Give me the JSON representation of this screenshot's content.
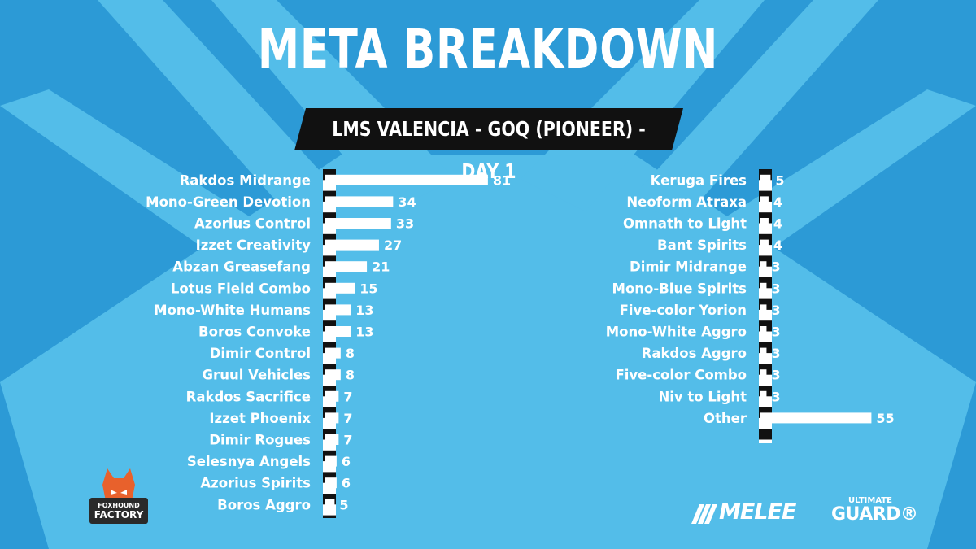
{
  "colors": {
    "background": "#2c9ad6",
    "ray": "#53bde9",
    "bar": "#ffffff",
    "band": "#111111"
  },
  "header": {
    "title": "META BREAKDOWN",
    "subtitle": "LMS VALENCIA - GOQ (PIONEER) - DAY 1"
  },
  "chart_data": [
    {
      "type": "bar",
      "orientation": "horizontal",
      "categories": [
        "Rakdos Midrange",
        "Mono-Green Devotion",
        "Azorius Control",
        "Izzet Creativity",
        "Abzan Greasefang",
        "Lotus Field Combo",
        "Mono-White Humans",
        "Boros Convoke",
        "Dimir Control",
        "Gruul Vehicles",
        "Rakdos Sacrifice",
        "Izzet Phoenix",
        "Dimir Rogues",
        "Selesnya Angels",
        "Azorius Spirits",
        "Boros Aggro"
      ],
      "values": [
        81,
        34,
        33,
        27,
        21,
        15,
        13,
        13,
        8,
        8,
        7,
        7,
        7,
        6,
        6,
        5
      ],
      "grid": false,
      "data_labels": true
    },
    {
      "type": "bar",
      "orientation": "horizontal",
      "categories": [
        "Keruga Fires",
        "Neoform Atraxa",
        "Omnath to Light",
        "Bant Spirits",
        "Dimir Midrange",
        "Mono-Blue Spirits",
        "Five-color Yorion",
        "Mono-White Aggro",
        "Rakdos Aggro",
        "Five-color Combo",
        "Niv to Light",
        "Other"
      ],
      "values": [
        5,
        4,
        4,
        4,
        3,
        3,
        3,
        3,
        3,
        3,
        3,
        55
      ],
      "grid": false,
      "data_labels": true
    }
  ],
  "logos": {
    "fox_line1": "FOXHOUND",
    "fox_line2": "FACTORY",
    "melee": "MELEE",
    "ug_line1": "ULTIMATE",
    "ug_line2": "GUARD®",
    "fox_icon": "fox-icon",
    "melee_icon": "melee-stripes-icon"
  }
}
